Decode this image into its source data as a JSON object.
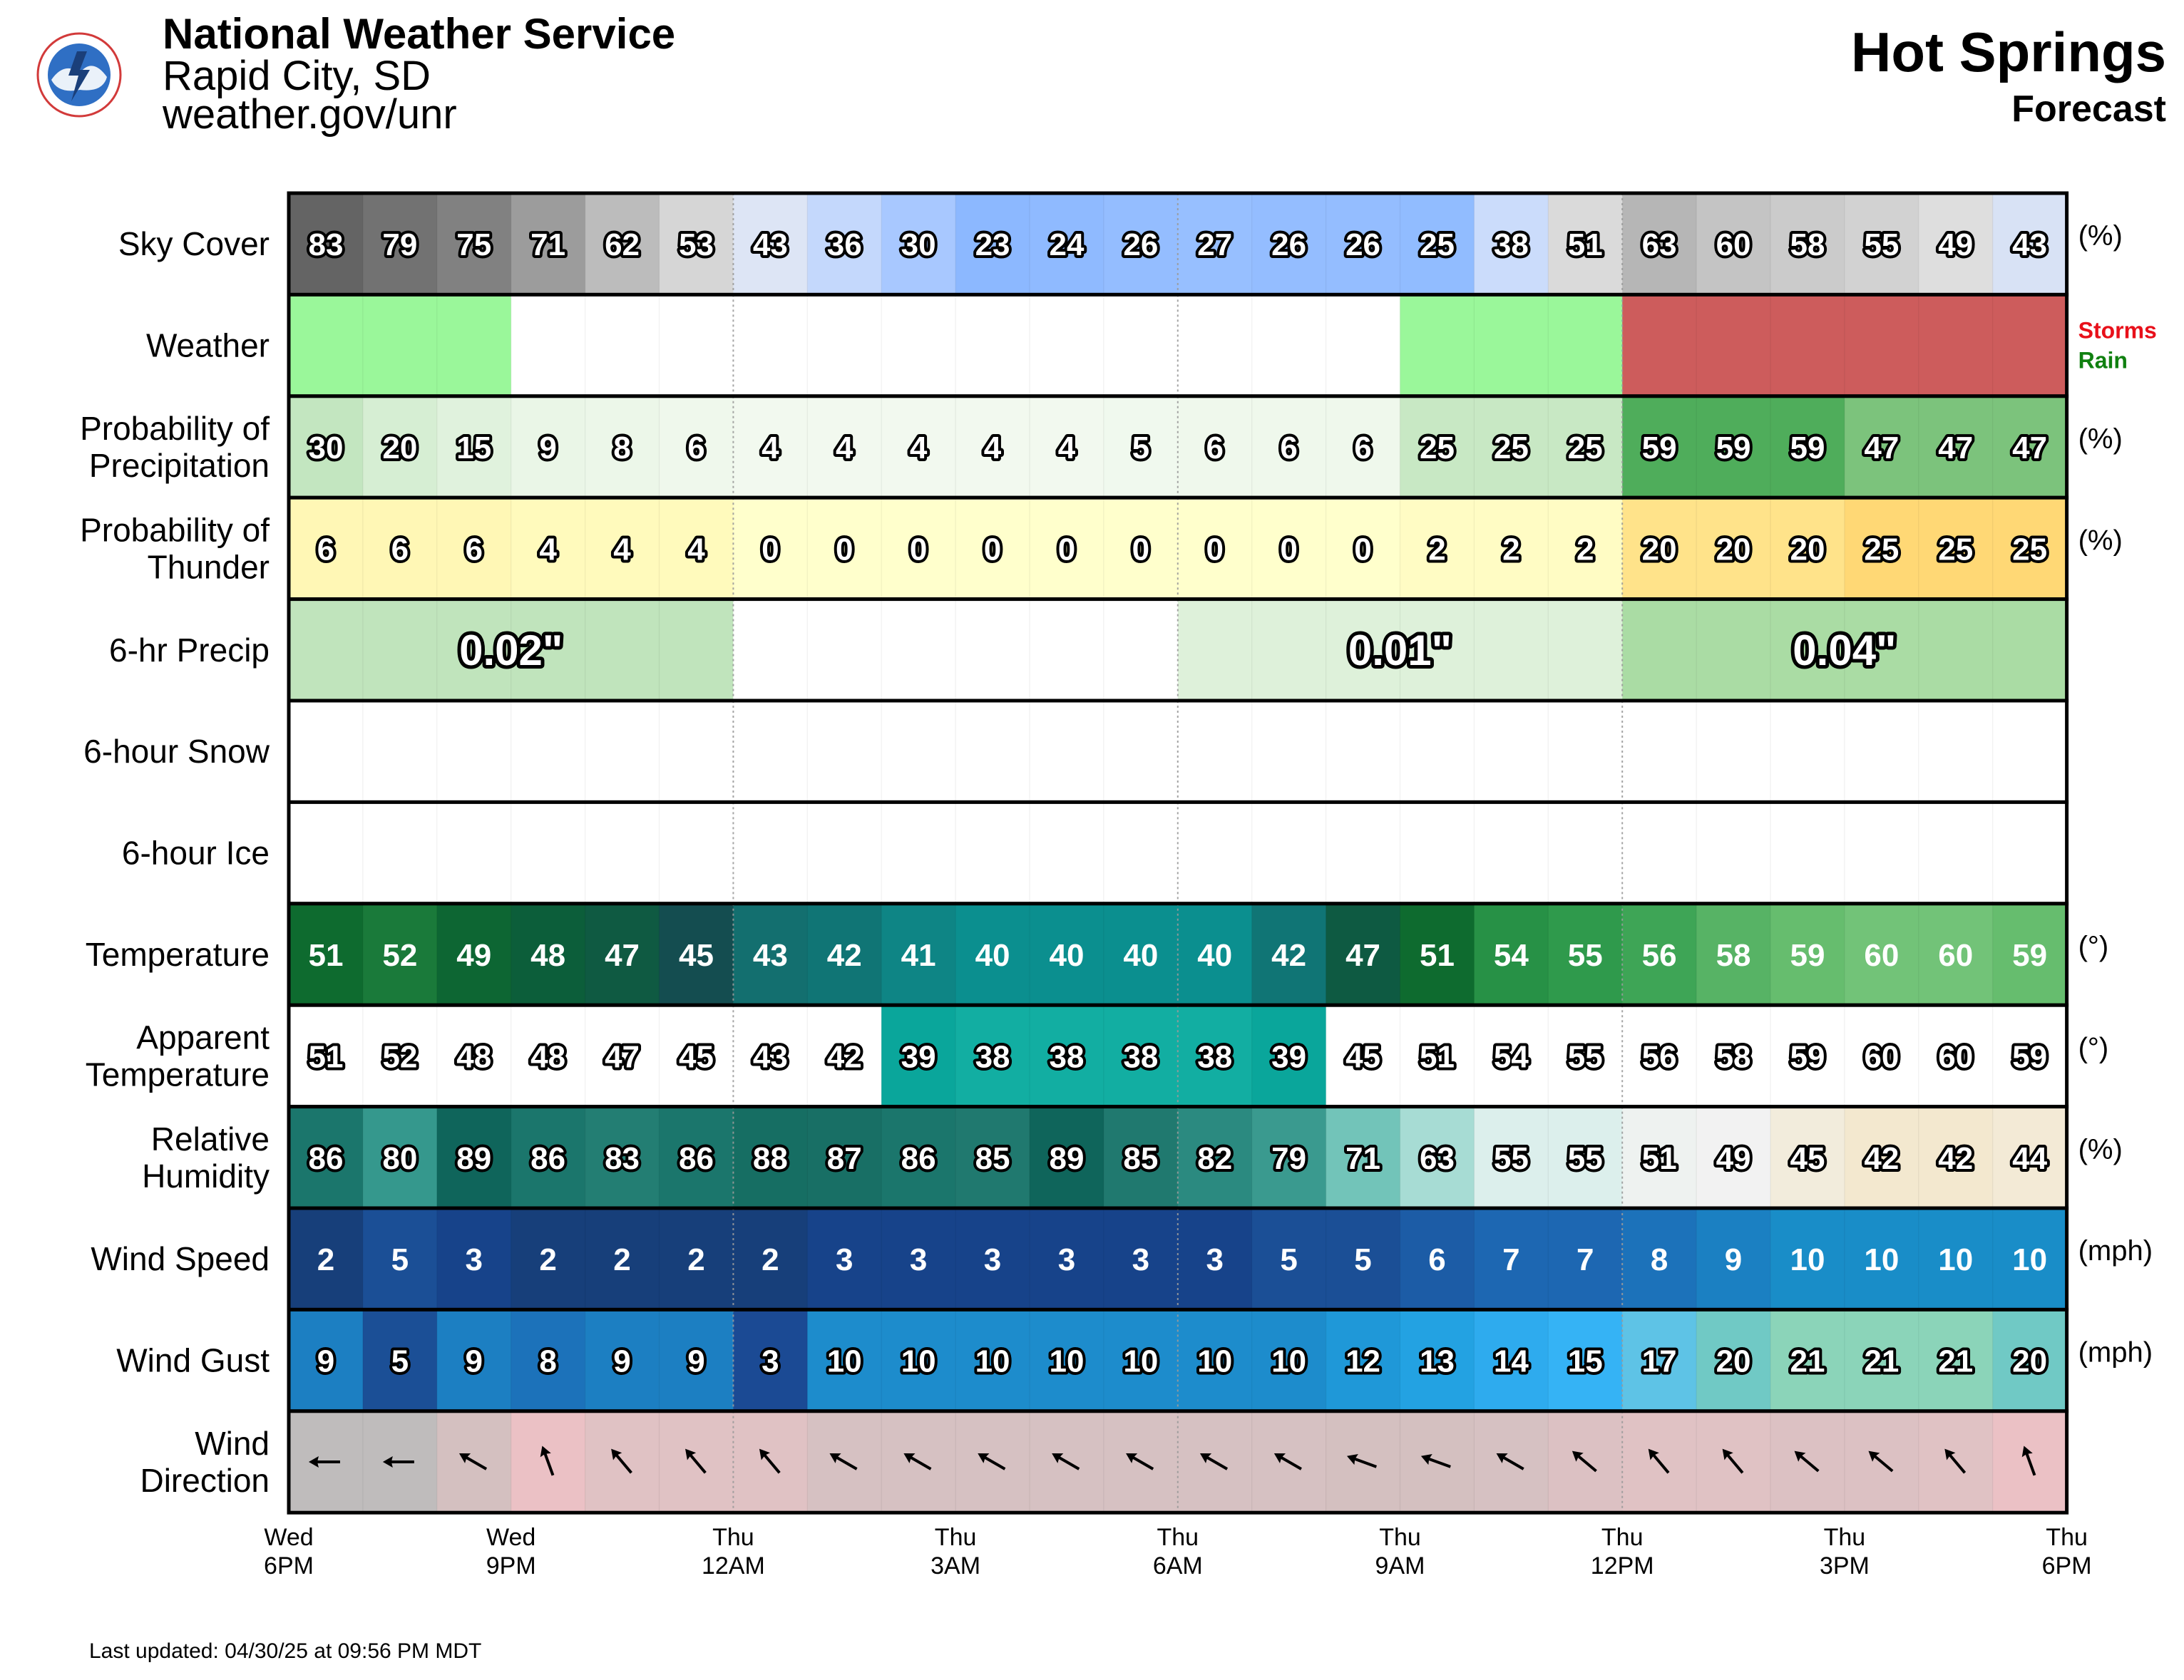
{
  "header": {
    "org": "National Weather Service",
    "office": "Rapid City, SD",
    "url": "weather.gov/unr",
    "location": "Hot Springs",
    "subtitle": "Forecast",
    "logo_icon": "nws-logo-icon",
    "logo_text": "NATIONAL WEATHER SERVICE"
  },
  "footer": {
    "updated": "Last updated: 04/30/25 at 09:56 PM MDT"
  },
  "chart_data": {
    "type": "heatmap",
    "columns": 24,
    "x_ticks": [
      {
        "col": 0,
        "day": "Wed",
        "time": "6PM"
      },
      {
        "col": 3,
        "day": "Wed",
        "time": "9PM"
      },
      {
        "col": 6,
        "day": "Thu",
        "time": "12AM"
      },
      {
        "col": 9,
        "day": "Thu",
        "time": "3AM"
      },
      {
        "col": 12,
        "day": "Thu",
        "time": "6AM"
      },
      {
        "col": 15,
        "day": "Thu",
        "time": "9AM"
      },
      {
        "col": 18,
        "day": "Thu",
        "time": "12PM"
      },
      {
        "col": 21,
        "day": "Thu",
        "time": "3PM"
      },
      {
        "col": 24,
        "day": "Thu",
        "time": "6PM"
      }
    ],
    "rows": [
      {
        "id": "sky",
        "label": [
          "Sky Cover"
        ],
        "unit": "(%)",
        "values": [
          83,
          79,
          75,
          71,
          62,
          53,
          43,
          36,
          30,
          23,
          24,
          26,
          27,
          26,
          26,
          25,
          38,
          51,
          63,
          60,
          58,
          55,
          49,
          43
        ],
        "colors": [
          "#646464",
          "#727272",
          "#818181",
          "#9c9c9c",
          "#bcbcbc",
          "#d6d6d6",
          "#dde5f5",
          "#c4d8fc",
          "#a8c8ff",
          "#8cb8ff",
          "#8fbaff",
          "#94bdff",
          "#97bfff",
          "#94bdff",
          "#94bdff",
          "#91bcff",
          "#cbdcfb",
          "#dadada",
          "#b6b6b6",
          "#c4c4c4",
          "#cbcbcb",
          "#d2d2d2",
          "#dedede",
          "#d8e2f5"
        ]
      },
      {
        "id": "weather",
        "label": [
          "Weather"
        ],
        "unit": "",
        "legend": [
          {
            "text": "Storms",
            "color": "#e8101a"
          },
          {
            "text": "Rain",
            "color": "#108010"
          }
        ],
        "colors": [
          "#9af79a",
          "#9af79a",
          "#9af79a",
          "#ffffff",
          "#ffffff",
          "#ffffff",
          "#ffffff",
          "#ffffff",
          "#ffffff",
          "#ffffff",
          "#ffffff",
          "#ffffff",
          "#ffffff",
          "#ffffff",
          "#ffffff",
          "#9af79a",
          "#9af79a",
          "#9af79a",
          "#cd5c5c",
          "#cd5c5c",
          "#cd5c5c",
          "#cd5c5c",
          "#cd5c5c",
          "#cd5c5c"
        ]
      },
      {
        "id": "pop",
        "label": [
          "Probability of",
          "Precipitation"
        ],
        "unit": "(%)",
        "values": [
          30,
          20,
          15,
          9,
          8,
          6,
          4,
          4,
          4,
          4,
          4,
          5,
          6,
          6,
          6,
          25,
          25,
          25,
          59,
          59,
          59,
          47,
          47,
          47
        ],
        "colors": [
          "#c3e6c0",
          "#d6eed3",
          "#e0f2dd",
          "#eaf6e7",
          "#ecf7e9",
          "#eff8ec",
          "#f2f9ef",
          "#f2f9ef",
          "#f2f9ef",
          "#f2f9ef",
          "#f2f9ef",
          "#f0f9ee",
          "#eff8ec",
          "#eff8ec",
          "#eff8ec",
          "#c8e8c4",
          "#c8e8c4",
          "#c8e8c4",
          "#4fad5b",
          "#4fad5b",
          "#4fad5b",
          "#7cc37c",
          "#7cc37c",
          "#7cc37c"
        ]
      },
      {
        "id": "pot",
        "label": [
          "Probability of",
          "Thunder"
        ],
        "unit": "(%)",
        "values": [
          6,
          6,
          6,
          4,
          4,
          4,
          0,
          0,
          0,
          0,
          0,
          0,
          0,
          0,
          0,
          2,
          2,
          2,
          20,
          20,
          20,
          25,
          25,
          25
        ],
        "colors": [
          "#fff7b5",
          "#fff7b5",
          "#fff7b5",
          "#fffabc",
          "#fffabc",
          "#fffabc",
          "#ffffcc",
          "#ffffcc",
          "#ffffcc",
          "#ffffcc",
          "#ffffcc",
          "#ffffcc",
          "#ffffcc",
          "#ffffcc",
          "#ffffcc",
          "#fffcc4",
          "#fffcc4",
          "#fffcc4",
          "#ffe38a",
          "#ffe38a",
          "#ffe38a",
          "#ffd875",
          "#ffd875",
          "#ffd875"
        ]
      },
      {
        "id": "qpf",
        "label": [
          "6-hr Precip"
        ],
        "unit": "",
        "blocks": [
          {
            "start": 0,
            "span": 6,
            "value": "0.02\"",
            "color": "#c0e4bc"
          },
          {
            "start": 6,
            "span": 6,
            "value": "",
            "color": "#ffffff"
          },
          {
            "start": 12,
            "span": 6,
            "value": "0.01\"",
            "color": "#def1da"
          },
          {
            "start": 18,
            "span": 6,
            "value": "0.04\"",
            "color": "#aadca4"
          }
        ]
      },
      {
        "id": "snow",
        "label": [
          "6-hour Snow"
        ],
        "unit": "",
        "blocks": [
          {
            "start": 0,
            "span": 6,
            "value": "",
            "color": "#ffffff"
          },
          {
            "start": 6,
            "span": 6,
            "value": "",
            "color": "#ffffff"
          },
          {
            "start": 12,
            "span": 6,
            "value": "",
            "color": "#ffffff"
          },
          {
            "start": 18,
            "span": 6,
            "value": "",
            "color": "#ffffff"
          }
        ]
      },
      {
        "id": "ice",
        "label": [
          "6-hour Ice"
        ],
        "unit": "",
        "blocks": [
          {
            "start": 0,
            "span": 6,
            "value": "",
            "color": "#ffffff"
          },
          {
            "start": 6,
            "span": 6,
            "value": "",
            "color": "#ffffff"
          },
          {
            "start": 12,
            "span": 6,
            "value": "",
            "color": "#ffffff"
          },
          {
            "start": 18,
            "span": 6,
            "value": "",
            "color": "#ffffff"
          }
        ]
      },
      {
        "id": "temp",
        "label": [
          "Temperature"
        ],
        "unit": "(°)",
        "text_style": "white",
        "values": [
          51,
          52,
          49,
          48,
          47,
          45,
          43,
          42,
          41,
          40,
          40,
          40,
          40,
          42,
          47,
          51,
          54,
          55,
          56,
          58,
          59,
          60,
          60,
          59
        ],
        "colors": [
          "#0e6b2f",
          "#1a7a3a",
          "#0d6633",
          "#0c5e3a",
          "#0f5a42",
          "#144d50",
          "#136f6f",
          "#107575",
          "#0e8585",
          "#0b8f8f",
          "#0b8f8f",
          "#0b8f8f",
          "#0b8f8f",
          "#107575",
          "#0e5a42",
          "#0e6b2f",
          "#279146",
          "#2f9a4c",
          "#3ea556",
          "#57b365",
          "#66bd6e",
          "#72c378",
          "#72c378",
          "#66bd6e"
        ]
      },
      {
        "id": "apparent",
        "label": [
          "Apparent",
          "Temperature"
        ],
        "unit": "(°)",
        "values": [
          51,
          52,
          48,
          48,
          47,
          45,
          43,
          42,
          39,
          38,
          38,
          38,
          38,
          39,
          45,
          51,
          54,
          55,
          56,
          58,
          59,
          60,
          60,
          59
        ],
        "colors": [
          "#ffffff",
          "#ffffff",
          "#ffffff",
          "#ffffff",
          "#ffffff",
          "#ffffff",
          "#ffffff",
          "#ffffff",
          "#0aa69b",
          "#12aea2",
          "#12aea2",
          "#12aea2",
          "#12aea2",
          "#0aa69b",
          "#ffffff",
          "#ffffff",
          "#ffffff",
          "#ffffff",
          "#ffffff",
          "#ffffff",
          "#ffffff",
          "#ffffff",
          "#ffffff",
          "#ffffff"
        ]
      },
      {
        "id": "rh",
        "label": [
          "Relative",
          "Humidity"
        ],
        "unit": "(%)",
        "values": [
          86,
          80,
          89,
          86,
          83,
          86,
          88,
          87,
          86,
          85,
          89,
          85,
          82,
          79,
          71,
          63,
          55,
          55,
          51,
          49,
          45,
          42,
          42,
          44
        ],
        "colors": [
          "#1b766c",
          "#35988d",
          "#0f655b",
          "#1b766c",
          "#237e73",
          "#1b766c",
          "#166e63",
          "#186f65",
          "#1b766c",
          "#20796f",
          "#0f655b",
          "#20796f",
          "#2b8a80",
          "#3a9a8f",
          "#72c4b9",
          "#a7dcd4",
          "#dcefec",
          "#dcefec",
          "#eef2f0",
          "#f2f2f2",
          "#f2ecdc",
          "#f3e8cf",
          "#f3e8cf",
          "#f3ead6"
        ]
      },
      {
        "id": "wspd",
        "label": [
          "Wind Speed"
        ],
        "unit": "(mph)",
        "text_style": "white",
        "values": [
          2,
          5,
          3,
          2,
          2,
          2,
          2,
          3,
          3,
          3,
          3,
          3,
          3,
          5,
          5,
          6,
          7,
          7,
          8,
          9,
          10,
          10,
          10,
          10
        ],
        "colors": [
          "#173f7a",
          "#1b4f96",
          "#17438a",
          "#173f7a",
          "#173f7a",
          "#173f7a",
          "#173f7a",
          "#17438a",
          "#17438a",
          "#17438a",
          "#17438a",
          "#17438a",
          "#17438a",
          "#1b4f96",
          "#1b4f96",
          "#1c5ca6",
          "#1d67b2",
          "#1d67b2",
          "#1c72ba",
          "#1b80c2",
          "#198dc8",
          "#198dc8",
          "#198dc8",
          "#198dc8"
        ]
      },
      {
        "id": "wgust",
        "label": [
          "Wind Gust"
        ],
        "unit": "(mph)",
        "values": [
          9,
          5,
          9,
          8,
          9,
          9,
          3,
          10,
          10,
          10,
          10,
          10,
          10,
          10,
          12,
          13,
          14,
          15,
          17,
          20,
          21,
          21,
          21,
          20
        ],
        "colors": [
          "#1c7fc2",
          "#1b4f96",
          "#1c7fc2",
          "#1c72ba",
          "#1c7fc2",
          "#1c7fc2",
          "#1b4a94",
          "#1d8ccc",
          "#1d8ccc",
          "#1d8ccc",
          "#1d8ccc",
          "#1d8ccc",
          "#1d8ccc",
          "#1d8ccc",
          "#1f98d8",
          "#23a2e2",
          "#2eabee",
          "#35b3f5",
          "#5ec3e6",
          "#70c9c5",
          "#8bd4b9",
          "#8bd4b9",
          "#8bd4b9",
          "#70c9c5"
        ]
      },
      {
        "id": "wdir",
        "label": [
          "Wind",
          "Direction"
        ],
        "unit": "",
        "directions_deg": [
          270,
          270,
          300,
          340,
          320,
          320,
          320,
          300,
          300,
          300,
          300,
          300,
          300,
          300,
          290,
          290,
          300,
          310,
          320,
          320,
          310,
          310,
          320,
          340
        ],
        "colors": [
          "#bfbcbc",
          "#bfbcbc",
          "#d4c0c0",
          "#ebc1c5",
          "#e0c2c4",
          "#e0c2c4",
          "#e0c2c4",
          "#d6c1c2",
          "#d6c1c2",
          "#d6c1c2",
          "#d6c1c2",
          "#d6c1c2",
          "#d6c1c2",
          "#d6c1c2",
          "#d4c0c0",
          "#d4c0c0",
          "#d6c1c2",
          "#dcc1c3",
          "#e0c2c4",
          "#e0c2c4",
          "#dcc1c3",
          "#dcc1c3",
          "#e0c2c4",
          "#ebc1c5"
        ]
      }
    ]
  }
}
